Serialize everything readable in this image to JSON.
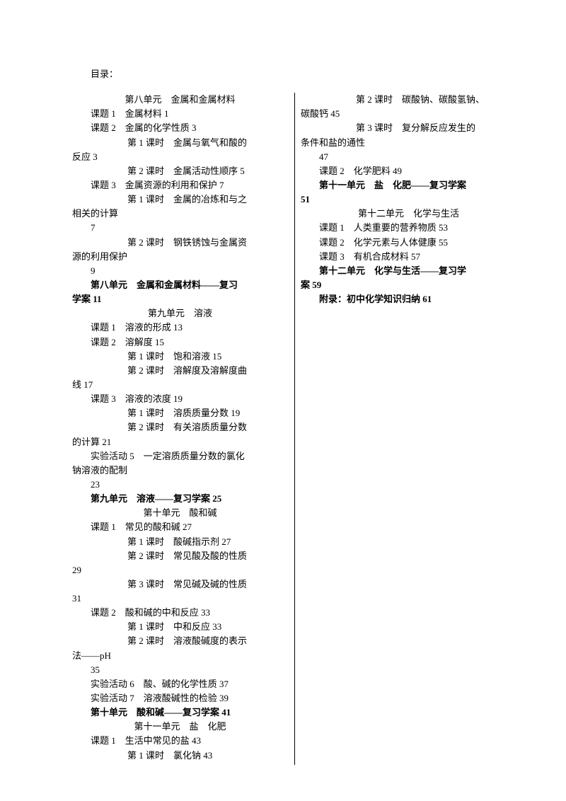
{
  "title": "目录：",
  "lines": [
    {
      "cls": "center",
      "text": "第八单元　金属和金属材料"
    },
    {
      "cls": "line",
      "text": "课题 1　金属材料 1"
    },
    {
      "cls": "line",
      "text": "课题 2　金属的化学性质 3"
    },
    {
      "cls": "sub",
      "text": "第 1 课时　金属与氧气和酸的"
    },
    {
      "cls": "nosub",
      "text": "反应 3"
    },
    {
      "cls": "sub",
      "text": "第 2 课时　金属活动性顺序 5"
    },
    {
      "cls": "line",
      "text": "课题 3　金属资源的利用和保护 7"
    },
    {
      "cls": "sub",
      "text": "第 1 课时　金属的冶炼和与之"
    },
    {
      "cls": "nosub",
      "text": "相关的计算"
    },
    {
      "cls": "line",
      "text": "7"
    },
    {
      "cls": "sub",
      "text": "第 2 课时　钢铁锈蚀与金属资"
    },
    {
      "cls": "nosub",
      "text": "源的利用保护"
    },
    {
      "cls": "line",
      "text": "9"
    },
    {
      "cls": "line bold",
      "text": "第八单元　金属和金属材料——复习"
    },
    {
      "cls": "nosub bold",
      "text": "学案 11"
    },
    {
      "cls": "center",
      "text": "第九单元　溶液"
    },
    {
      "cls": "line",
      "text": "课题 1　溶液的形成 13"
    },
    {
      "cls": "line",
      "text": "课题 2　溶解度 15"
    },
    {
      "cls": "sub",
      "text": "第 1 课时　饱和溶液 15"
    },
    {
      "cls": "sub",
      "text": "第 2 课时　溶解度及溶解度曲"
    },
    {
      "cls": "nosub",
      "text": "线 17"
    },
    {
      "cls": "line",
      "text": "课题 3　溶液的浓度 19"
    },
    {
      "cls": "sub",
      "text": "第 1 课时　溶质质量分数 19"
    },
    {
      "cls": "sub",
      "text": "第 2 课时　有关溶质质量分数"
    },
    {
      "cls": "nosub",
      "text": "的计算 21"
    },
    {
      "cls": "line",
      "text": "实验活动 5　一定溶质质量分数的氯化"
    },
    {
      "cls": "nosub",
      "text": "钠溶液的配制"
    },
    {
      "cls": "line",
      "text": "23"
    },
    {
      "cls": "line bold",
      "text": "第九单元　溶液——复习学案 25"
    },
    {
      "cls": "center",
      "text": "第十单元　酸和碱"
    },
    {
      "cls": "line",
      "text": "课题 1　常见的酸和碱 27"
    },
    {
      "cls": "sub",
      "text": "第 1 课时　酸碱指示剂 27"
    },
    {
      "cls": "sub",
      "text": "第 2 课时　常见酸及酸的性质"
    },
    {
      "cls": "nosub",
      "text": "29"
    },
    {
      "cls": "sub",
      "text": "第 3 课时　常见碱及碱的性质"
    },
    {
      "cls": "nosub",
      "text": "31"
    },
    {
      "cls": "line",
      "text": "课题 2　酸和碱的中和反应 33"
    },
    {
      "cls": "sub",
      "text": "第 1 课时　中和反应 33"
    },
    {
      "cls": "sub",
      "text": "第 2 课时　溶液酸碱度的表示"
    },
    {
      "cls": "nosub",
      "text": "法——pH"
    },
    {
      "cls": "line",
      "text": "35"
    },
    {
      "cls": "line",
      "text": "实验活动 6　酸、碱的化学性质 37"
    },
    {
      "cls": "line",
      "text": "实验活动 7　溶液酸碱性的检验 39"
    },
    {
      "cls": "line bold",
      "text": "第十单元　酸和碱——复习学案 41"
    },
    {
      "cls": "center",
      "text": "第十一单元　盐　化肥"
    },
    {
      "cls": "line",
      "text": "课题 1　生活中常见的盐 43"
    },
    {
      "cls": "sub",
      "text": "第 1 课时　氯化钠 43"
    },
    {
      "cls": "sub",
      "text": "第 2 课时　碳酸钠、碳酸氢钠、"
    },
    {
      "cls": "nosub",
      "text": "碳酸钙 45"
    },
    {
      "cls": "sub",
      "text": "第 3 课时　复分解反应发生的"
    },
    {
      "cls": "nosub",
      "text": "条件和盐的通性"
    },
    {
      "cls": "line",
      "text": "47"
    },
    {
      "cls": "line",
      "text": "课题 2　化学肥料 49"
    },
    {
      "cls": "line bold",
      "text": "第十一单元　盐　化肥——复习学案"
    },
    {
      "cls": "nosub bold",
      "text": "51"
    },
    {
      "cls": "center",
      "text": "第十二单元　化学与生活"
    },
    {
      "cls": "line",
      "text": "课题 1　人类重要的营养物质 53"
    },
    {
      "cls": "line",
      "text": "课题 2　化学元素与人体健康 55"
    },
    {
      "cls": "line",
      "text": "课题 3　有机合成材料 57"
    },
    {
      "cls": "line bold",
      "text": "第十二单元　化学与生活——复习学"
    },
    {
      "cls": "nosub bold",
      "text": "案 59"
    },
    {
      "cls": "line bold",
      "text": "附录：初中化学知识归纳 61"
    }
  ]
}
